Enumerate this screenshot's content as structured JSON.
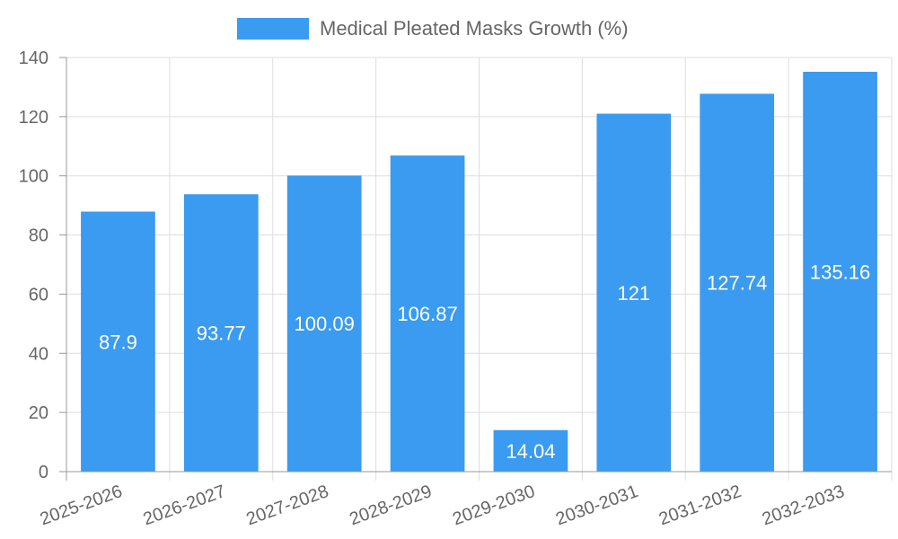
{
  "chart_data": {
    "type": "bar",
    "categories": [
      "2025-2026",
      "2026-2027",
      "2027-2028",
      "2028-2029",
      "2029-2030",
      "2030-2031",
      "2031-2032",
      "2032-2033"
    ],
    "series": [
      {
        "name": "Medical Pleated Masks Growth (%)",
        "values": [
          87.9,
          93.77,
          100.09,
          106.87,
          14.04,
          121,
          127.74,
          135.16
        ],
        "color": "#3a9bf0"
      }
    ],
    "value_labels": [
      "87.9",
      "93.77",
      "100.09",
      "106.87",
      "14.04",
      "121",
      "127.74",
      "135.16"
    ],
    "y_ticks": [
      0,
      20,
      40,
      60,
      80,
      100,
      120,
      140
    ],
    "ylim": [
      0,
      140
    ],
    "grid": true,
    "legend_position": "top-center",
    "title": "",
    "xlabel": "",
    "ylabel": ""
  },
  "colors": {
    "bar": "#3a9bf0",
    "grid": "#dddddd",
    "axis": "#999999",
    "text": "#666666",
    "label": "#ffffff"
  }
}
